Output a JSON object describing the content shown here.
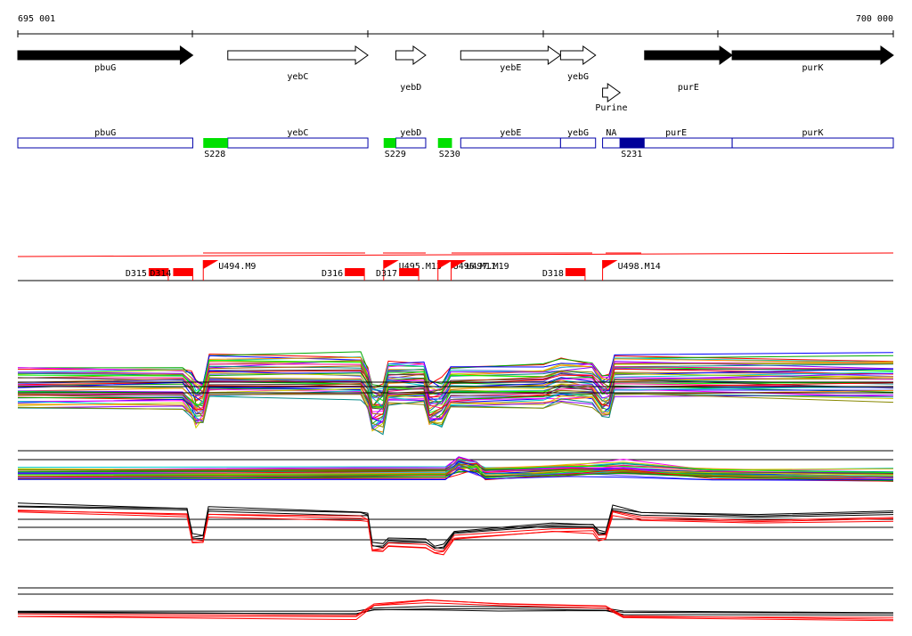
{
  "ruler": {
    "start_label": "695 001",
    "end_label": "700 000",
    "start_bp": 695001,
    "end_bp": 700000
  },
  "genes": [
    {
      "name": "pbuG",
      "start": 695001,
      "end": 696000,
      "strand": "+",
      "filled": true
    },
    {
      "name": "yebC",
      "start": 696200,
      "end": 697000,
      "strand": "+",
      "filled": false
    },
    {
      "name": "yebD",
      "start": 697160,
      "end": 697330,
      "strand": "+",
      "filled": false
    },
    {
      "name": "yebE",
      "start": 697530,
      "end": 698100,
      "strand": "+",
      "filled": false
    },
    {
      "name": "yebG",
      "start": 698100,
      "end": 698300,
      "strand": "+",
      "filled": false
    },
    {
      "name": "Purine",
      "start": 698340,
      "end": 698440,
      "strand": "+",
      "filled": false
    },
    {
      "name": "purE",
      "start": 698580,
      "end": 699080,
      "strand": "+",
      "filled": true
    },
    {
      "name": "purK",
      "start": 699080,
      "end": 700000,
      "strand": "+",
      "filled": true
    }
  ],
  "segments": {
    "boxes": [
      {
        "name": "pbuG",
        "start": 695001,
        "end": 696000
      },
      {
        "name": "yebC",
        "start": 696200,
        "end": 697000
      },
      {
        "name": "yebD",
        "start": 697160,
        "end": 697330
      },
      {
        "name": "yebE",
        "start": 697530,
        "end": 698100
      },
      {
        "name": "yebG",
        "start": 698100,
        "end": 698300
      },
      {
        "name": "NA",
        "start": 698340,
        "end": 698440
      },
      {
        "name": "purE",
        "start": 698440,
        "end": 699080
      },
      {
        "name": "purK",
        "start": 699080,
        "end": 700000
      }
    ],
    "features": [
      {
        "name": "S228",
        "start": 696060,
        "end": 696200,
        "color": "#00e000"
      },
      {
        "name": "S229",
        "start": 697090,
        "end": 697160,
        "color": "#00e000"
      },
      {
        "name": "S230",
        "start": 697400,
        "end": 697480,
        "color": "#00e000"
      },
      {
        "name": "S231",
        "start": 698440,
        "end": 698580,
        "color": "#000099"
      }
    ]
  },
  "regulatory": {
    "ups": [
      {
        "name": "U494.M9",
        "pos": 696060
      },
      {
        "name": "U495.M13",
        "pos": 697090
      },
      {
        "name": "U496.M11",
        "pos": 697400
      },
      {
        "name": "U497.M19",
        "pos": 697475
      },
      {
        "name": "U498.M14",
        "pos": 698340
      }
    ],
    "downs": [
      {
        "name": "D315",
        "pos": 695860
      },
      {
        "name": "D314",
        "pos": 696000
      },
      {
        "name": "D316",
        "pos": 696980
      },
      {
        "name": "D317",
        "pos": 697290
      },
      {
        "name": "D318",
        "pos": 698240
      }
    ]
  },
  "colors": {
    "gene_fill": "#000000",
    "segment_border": "#0000aa",
    "regulatory": "#ff0000",
    "highlight_track": "#ff0000"
  }
}
